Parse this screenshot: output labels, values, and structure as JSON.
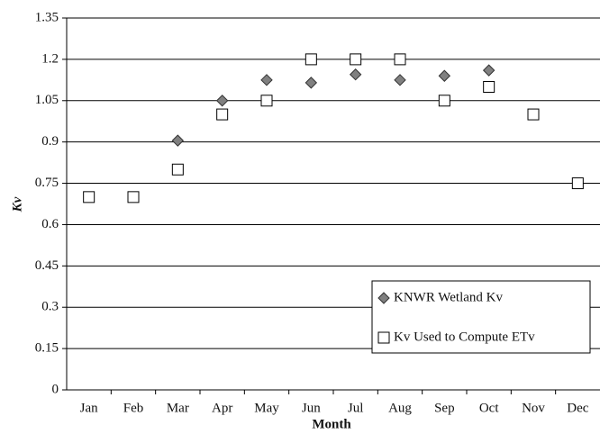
{
  "chart_data": {
    "type": "scatter",
    "xlabel": "Month",
    "ylabel": "Kv",
    "categories": [
      "Jan",
      "Feb",
      "Mar",
      "Apr",
      "May",
      "Jun",
      "Jul",
      "Aug",
      "Sep",
      "Oct",
      "Nov",
      "Dec"
    ],
    "series": [
      {
        "name": "KNWR Wetland Kv",
        "marker": "diamond",
        "color": "#808080",
        "values": [
          null,
          null,
          0.905,
          1.05,
          1.125,
          1.115,
          1.145,
          1.125,
          1.14,
          1.16,
          null,
          null
        ]
      },
      {
        "name": "Kv Used to Compute ETv",
        "marker": "square",
        "color": "#ffffff",
        "values": [
          0.7,
          0.7,
          0.8,
          1.0,
          1.05,
          1.2,
          1.2,
          1.2,
          1.05,
          1.1,
          1.0,
          0.75
        ]
      }
    ],
    "ylim": [
      0,
      1.35
    ],
    "yticks": [
      0,
      0.15,
      0.3,
      0.45,
      0.6,
      0.75,
      0.9,
      1.05,
      1.2,
      1.35
    ],
    "grid": true,
    "legend": "lower right"
  }
}
